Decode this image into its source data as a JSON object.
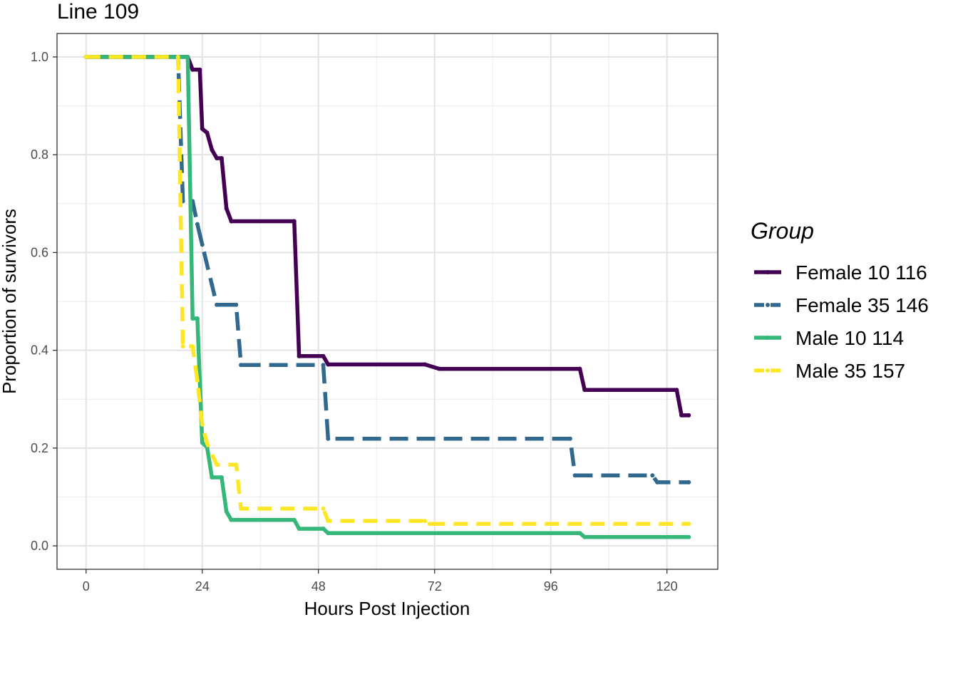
{
  "chart_data": {
    "type": "line",
    "title": "Line 109",
    "xlabel": "Hours Post Injection",
    "ylabel": "Proportion of survivors",
    "xlim": [
      -6,
      130.5
    ],
    "ylim": [
      -0.048,
      1.048
    ],
    "xticks": [
      0,
      24,
      48,
      72,
      96,
      120
    ],
    "xtick_labels": [
      "0",
      "24",
      "48",
      "72",
      "96",
      "120"
    ],
    "yticks": [
      0.0,
      0.2,
      0.4,
      0.6,
      0.8,
      1.0
    ],
    "ytick_labels": [
      "0.0",
      "0.2",
      "0.4",
      "0.6",
      "0.8",
      "1.0"
    ],
    "grid": true,
    "legend_title": "Group",
    "legend_position": "right",
    "series": [
      {
        "name": "Female 10 116",
        "color": "#440154",
        "dash": "solid",
        "points": [
          [
            0,
            1.0
          ],
          [
            21,
            1.0
          ],
          [
            22,
            0.974
          ],
          [
            23.5,
            0.974
          ],
          [
            24,
            0.853
          ],
          [
            25,
            0.845
          ],
          [
            26,
            0.81
          ],
          [
            27,
            0.793
          ],
          [
            28,
            0.793
          ],
          [
            29,
            0.69
          ],
          [
            30,
            0.664
          ],
          [
            43,
            0.664
          ],
          [
            44,
            0.388
          ],
          [
            49,
            0.388
          ],
          [
            50,
            0.371
          ],
          [
            70,
            0.371
          ],
          [
            73,
            0.362
          ],
          [
            102,
            0.362
          ],
          [
            103,
            0.319
          ],
          [
            122,
            0.319
          ],
          [
            123,
            0.267
          ],
          [
            124.5,
            0.267
          ]
        ]
      },
      {
        "name": "Female 35 146",
        "color": "#31688e",
        "dash": "longdash",
        "points": [
          [
            0,
            1.0
          ],
          [
            19,
            1.0
          ],
          [
            20,
            0.705
          ],
          [
            22,
            0.705
          ],
          [
            23,
            0.658
          ],
          [
            24,
            0.616
          ],
          [
            26,
            0.534
          ],
          [
            27,
            0.493
          ],
          [
            31,
            0.493
          ],
          [
            32,
            0.37
          ],
          [
            49,
            0.37
          ],
          [
            50,
            0.219
          ],
          [
            100,
            0.219
          ],
          [
            101,
            0.144
          ],
          [
            117,
            0.144
          ],
          [
            118,
            0.13
          ],
          [
            124.5,
            0.13
          ]
        ]
      },
      {
        "name": "Male 10 114",
        "color": "#35b779",
        "dash": "solid",
        "points": [
          [
            0,
            1.0
          ],
          [
            21,
            1.0
          ],
          [
            22,
            0.465
          ],
          [
            23,
            0.465
          ],
          [
            24,
            0.211
          ],
          [
            25,
            0.202
          ],
          [
            26,
            0.14
          ],
          [
            28,
            0.14
          ],
          [
            29,
            0.07
          ],
          [
            30,
            0.053
          ],
          [
            43,
            0.053
          ],
          [
            44,
            0.035
          ],
          [
            49,
            0.035
          ],
          [
            50,
            0.026
          ],
          [
            102,
            0.026
          ],
          [
            103,
            0.018
          ],
          [
            124.5,
            0.018
          ]
        ]
      },
      {
        "name": "Male 35 157",
        "color": "#fde725",
        "dash": "dashed",
        "points": [
          [
            0,
            1.0
          ],
          [
            19,
            1.0
          ],
          [
            20,
            0.408
          ],
          [
            22,
            0.408
          ],
          [
            23,
            0.338
          ],
          [
            24,
            0.248
          ],
          [
            25,
            0.21
          ],
          [
            27,
            0.166
          ],
          [
            31,
            0.166
          ],
          [
            32,
            0.076
          ],
          [
            49,
            0.076
          ],
          [
            50,
            0.051
          ],
          [
            70,
            0.051
          ],
          [
            71,
            0.045
          ],
          [
            124.5,
            0.045
          ]
        ]
      }
    ]
  }
}
